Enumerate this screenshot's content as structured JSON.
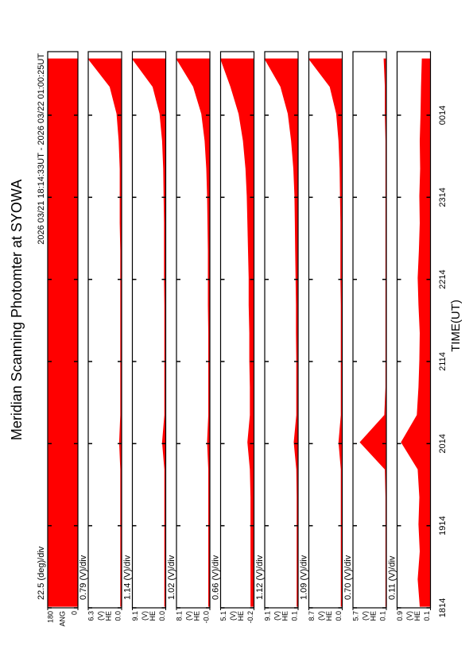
{
  "chart_data": {
    "type": "area",
    "title": "Meridian Scanning Photomter at SYOWA",
    "subtitle": "2026 03/21 18:14:33UT - 2026 03/22 01:00:25UT",
    "xlabel": "TIME(UT)",
    "xlim": [
      18.233,
      25.007
    ],
    "xticks": [
      {
        "value": 18.233,
        "label": "1814"
      },
      {
        "value": 19.233,
        "label": "1914"
      },
      {
        "value": 20.233,
        "label": "2014"
      },
      {
        "value": 21.233,
        "label": "2114"
      },
      {
        "value": 22.233,
        "label": "2214"
      },
      {
        "value": 23.233,
        "label": "2314"
      },
      {
        "value": 24.233,
        "label": "0014"
      }
    ],
    "x": [
      18.25,
      18.58,
      18.92,
      19.25,
      19.58,
      19.92,
      20.25,
      20.58,
      20.92,
      21.25,
      21.58,
      21.92,
      22.25,
      22.58,
      22.92,
      23.25,
      23.58,
      23.92,
      24.25,
      24.58,
      24.92
    ],
    "panels": [
      {
        "scale_label": "22.5 (deg)/div",
        "ylabel": [
          "ANG"
        ],
        "ylim": [
          0,
          180
        ],
        "yticks": [
          0,
          180
        ],
        "color": "#ff0000",
        "values": [
          180,
          180,
          180,
          180,
          180,
          180,
          180,
          180,
          180,
          180,
          180,
          180,
          180,
          180,
          180,
          180,
          180,
          180,
          180,
          180,
          180
        ]
      },
      {
        "scale_label": "0.79 (V)/div",
        "ylabel": [
          "(V)",
          "HE"
        ],
        "ylim": [
          0,
          6.3
        ],
        "yticks": [
          {
            "value": 0,
            "label": "0.0"
          },
          6.3
        ],
        "color": "#ff0000",
        "values": [
          0.2,
          0.2,
          0.2,
          0.2,
          0.2,
          0.2,
          0.4,
          0.2,
          0.2,
          0.2,
          0.2,
          0.2,
          0.2,
          0.2,
          0.3,
          0.3,
          0.3,
          0.5,
          0.9,
          2.2,
          6.3
        ]
      },
      {
        "scale_label": "1.14 (V)/div",
        "ylabel": [
          "(V)",
          "HE"
        ],
        "ylim": [
          0,
          9.1
        ],
        "yticks": [
          {
            "value": 0,
            "label": "0.0"
          },
          9.1
        ],
        "color": "#ff0000",
        "values": [
          0.3,
          0.3,
          0.3,
          0.3,
          0.3,
          0.3,
          0.9,
          0.3,
          0.3,
          0.3,
          0.3,
          0.3,
          0.4,
          0.4,
          0.4,
          0.5,
          0.6,
          0.9,
          1.6,
          3.5,
          9.1
        ]
      },
      {
        "scale_label": "1.02 (V)/div",
        "ylabel": [
          "(V)",
          "HE"
        ],
        "ylim": [
          0,
          8.1
        ],
        "yticks": [
          {
            "value": 0,
            "label": "-0.0"
          },
          8.1
        ],
        "color": "#ff0000",
        "values": [
          0.3,
          0.3,
          0.3,
          0.3,
          0.3,
          0.3,
          0.6,
          0.3,
          0.3,
          0.3,
          0.3,
          0.4,
          0.4,
          0.4,
          0.5,
          0.6,
          0.8,
          1.2,
          2.0,
          4.0,
          8.1
        ]
      },
      {
        "scale_label": "0.66 (V)/div",
        "ylabel": [
          "(V)",
          "HE"
        ],
        "ylim": [
          -0.2,
          5.1
        ],
        "yticks": [
          -0.2,
          5.1
        ],
        "color": "#ff0000",
        "values": [
          0.3,
          0.3,
          0.3,
          0.3,
          0.3,
          0.4,
          0.8,
          0.4,
          0.4,
          0.5,
          0.5,
          0.6,
          0.6,
          0.7,
          0.8,
          0.9,
          1.1,
          1.5,
          2.2,
          3.5,
          5.1
        ]
      },
      {
        "scale_label": "1.12 (V)/div",
        "ylabel": [
          "(V)",
          "HE"
        ],
        "ylim": [
          0.1,
          9.1
        ],
        "yticks": [
          0.1,
          9.1
        ],
        "color": "#ff0000",
        "values": [
          0.4,
          0.4,
          0.4,
          0.4,
          0.4,
          0.5,
          1.2,
          0.5,
          0.5,
          0.5,
          0.6,
          0.6,
          0.7,
          0.8,
          0.9,
          1.0,
          1.3,
          1.9,
          2.8,
          4.8,
          9.1
        ]
      },
      {
        "scale_label": "1.09 (V)/div",
        "ylabel": [
          "(V)",
          "HE"
        ],
        "ylim": [
          0,
          8.7
        ],
        "yticks": [
          {
            "value": 0,
            "label": "0.0"
          },
          8.7
        ],
        "color": "#ff0000",
        "values": [
          0.3,
          0.3,
          0.3,
          0.3,
          0.3,
          0.3,
          0.9,
          0.3,
          0.3,
          0.3,
          0.3,
          0.3,
          0.4,
          0.4,
          0.4,
          0.5,
          0.6,
          0.9,
          1.5,
          3.2,
          8.7
        ]
      },
      {
        "scale_label": "0.70 (V)/div",
        "ylabel": [
          "(V)",
          "HE"
        ],
        "ylim": [
          0.1,
          5.7
        ],
        "yticks": [
          0.1,
          5.7
        ],
        "color": "#ff0000",
        "values": [
          0.2,
          0.2,
          0.2,
          0.2,
          0.2,
          0.3,
          4.5,
          0.4,
          0.2,
          0.2,
          0.2,
          0.2,
          0.2,
          0.2,
          0.2,
          0.2,
          0.2,
          0.2,
          0.3,
          0.3,
          0.5
        ]
      },
      {
        "scale_label": "0.11 (V)/div",
        "ylabel": [
          "(V)",
          "HE"
        ],
        "ylim": [
          0.1,
          0.9
        ],
        "yticks": [
          0.1,
          0.9
        ],
        "color": "#ff0000",
        "values": [
          0.35,
          0.4,
          0.35,
          0.38,
          0.36,
          0.4,
          0.8,
          0.42,
          0.38,
          0.36,
          0.35,
          0.38,
          0.4,
          0.37,
          0.35,
          0.36,
          0.34,
          0.35,
          0.33,
          0.32,
          0.3
        ]
      }
    ]
  }
}
